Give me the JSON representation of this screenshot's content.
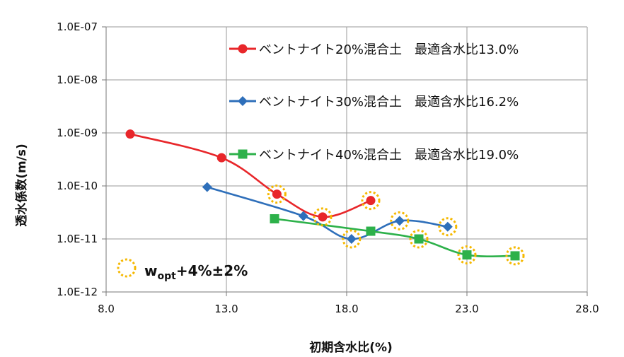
{
  "chart_data": {
    "type": "line",
    "xlabel": "初期含水比(%)",
    "ylabel": "透水係数(m/s)",
    "xlim": [
      8.0,
      28.0
    ],
    "xticks": [
      "8.0",
      "13.0",
      "18.0",
      "23.0",
      "28.0"
    ],
    "xtick_values": [
      8,
      13,
      18,
      23,
      28
    ],
    "yscale": "log",
    "ylim": [
      1e-12,
      1e-07
    ],
    "yticks": [
      "1.0E-12",
      "1.0E-11",
      "1.0E-10",
      "1.0E-09",
      "1.0E-08",
      "1.0E-07"
    ],
    "ytick_exponents": [
      -12,
      -11,
      -10,
      -9,
      -8,
      -7
    ],
    "grid": true,
    "legend_position": "top-right",
    "series": [
      {
        "name": "ベントナイト20%混合土　最適含水比13.0%",
        "color": "#e8262a",
        "marker": "circle",
        "x": [
          9.0,
          12.8,
          15.1,
          17.0,
          19.0
        ],
        "y": [
          9.5e-10,
          3.4e-10,
          7e-11,
          2.6e-11,
          5.3e-11
        ],
        "highlighted": [
          false,
          false,
          true,
          true,
          true
        ]
      },
      {
        "name": "ベントナイト30%混合土　最適含水比16.2%",
        "color": "#2e6fba",
        "marker": "diamond",
        "x": [
          12.2,
          16.2,
          18.2,
          20.2,
          22.2
        ],
        "y": [
          9.5e-11,
          2.7e-11,
          1e-11,
          2.2e-11,
          1.7e-11
        ],
        "highlighted": [
          false,
          false,
          true,
          true,
          true
        ]
      },
      {
        "name": "ベントナイト40%混合土　最適含水比19.0%",
        "color": "#2db14a",
        "marker": "square",
        "x": [
          15.0,
          19.0,
          21.0,
          23.0,
          25.0
        ],
        "y": [
          2.4e-11,
          1.4e-11,
          1e-11,
          5e-12,
          4.8e-12
        ],
        "highlighted": [
          false,
          false,
          true,
          true,
          true
        ]
      }
    ],
    "annotation": {
      "symbol": "dashed-circle",
      "symbol_color": "#f5b800",
      "label_prefix": "w",
      "label_subscript": "opt",
      "label_suffix": "+4%±2%"
    }
  }
}
